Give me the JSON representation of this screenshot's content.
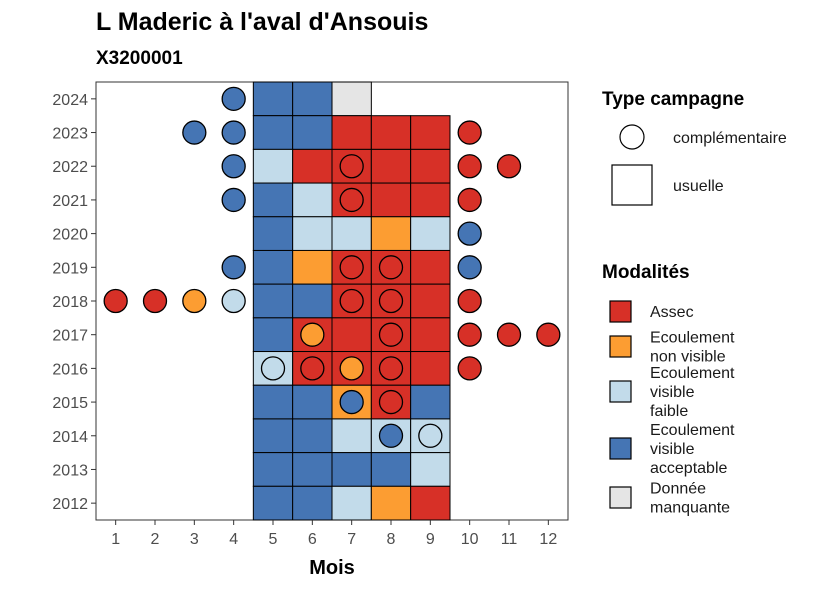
{
  "chart_data": {
    "type": "heatmap",
    "title": "L Maderic à l'aval d'Ansouis",
    "subtitle": "X3200001",
    "xlabel": "Mois",
    "ylabel": "",
    "x_ticks": [
      "1",
      "2",
      "3",
      "4",
      "5",
      "6",
      "7",
      "8",
      "9",
      "10",
      "11",
      "12"
    ],
    "y_ticks": [
      "2012",
      "2013",
      "2014",
      "2015",
      "2016",
      "2017",
      "2018",
      "2019",
      "2020",
      "2021",
      "2022",
      "2023",
      "2024"
    ],
    "xlim": [
      0.5,
      12.5
    ],
    "ylim": [
      2011.5,
      2024.5
    ],
    "legend_shape": {
      "title": "Type campagne",
      "items": [
        {
          "label": "complémentaire",
          "shape": "circle"
        },
        {
          "label": "usuelle",
          "shape": "square"
        }
      ]
    },
    "legend_modalites": {
      "title": "Modalités",
      "items": [
        {
          "key": "assec",
          "lines": [
            "Assec"
          ],
          "color": "#d73027"
        },
        {
          "key": "nonvisible",
          "lines": [
            "Ecoulement",
            "non visible"
          ],
          "color": "#fc9d32"
        },
        {
          "key": "faible",
          "lines": [
            "Ecoulement",
            "visible",
            "faible"
          ],
          "color": "#c2dbea"
        },
        {
          "key": "acceptable",
          "lines": [
            "Ecoulement",
            "visible",
            "acceptable"
          ],
          "color": "#4575b4"
        },
        {
          "key": "manquante",
          "lines": [
            "Donnée",
            "manquante"
          ],
          "color": "#e5e5e5"
        }
      ]
    },
    "usuelle": [
      {
        "year": 2024,
        "month": 5,
        "value": "acceptable"
      },
      {
        "year": 2024,
        "month": 6,
        "value": "acceptable"
      },
      {
        "year": 2024,
        "month": 7,
        "value": "manquante"
      },
      {
        "year": 2023,
        "month": 5,
        "value": "acceptable"
      },
      {
        "year": 2023,
        "month": 6,
        "value": "acceptable"
      },
      {
        "year": 2023,
        "month": 7,
        "value": "assec"
      },
      {
        "year": 2023,
        "month": 8,
        "value": "assec"
      },
      {
        "year": 2023,
        "month": 9,
        "value": "assec"
      },
      {
        "year": 2022,
        "month": 5,
        "value": "faible"
      },
      {
        "year": 2022,
        "month": 6,
        "value": "assec"
      },
      {
        "year": 2022,
        "month": 7,
        "value": "assec"
      },
      {
        "year": 2022,
        "month": 8,
        "value": "assec"
      },
      {
        "year": 2022,
        "month": 9,
        "value": "assec"
      },
      {
        "year": 2021,
        "month": 5,
        "value": "acceptable"
      },
      {
        "year": 2021,
        "month": 6,
        "value": "faible"
      },
      {
        "year": 2021,
        "month": 7,
        "value": "assec"
      },
      {
        "year": 2021,
        "month": 8,
        "value": "assec"
      },
      {
        "year": 2021,
        "month": 9,
        "value": "assec"
      },
      {
        "year": 2020,
        "month": 5,
        "value": "acceptable"
      },
      {
        "year": 2020,
        "month": 6,
        "value": "faible"
      },
      {
        "year": 2020,
        "month": 7,
        "value": "faible"
      },
      {
        "year": 2020,
        "month": 8,
        "value": "nonvisible"
      },
      {
        "year": 2020,
        "month": 9,
        "value": "faible"
      },
      {
        "year": 2019,
        "month": 5,
        "value": "acceptable"
      },
      {
        "year": 2019,
        "month": 6,
        "value": "nonvisible"
      },
      {
        "year": 2019,
        "month": 7,
        "value": "assec"
      },
      {
        "year": 2019,
        "month": 8,
        "value": "assec"
      },
      {
        "year": 2019,
        "month": 9,
        "value": "assec"
      },
      {
        "year": 2018,
        "month": 5,
        "value": "acceptable"
      },
      {
        "year": 2018,
        "month": 6,
        "value": "acceptable"
      },
      {
        "year": 2018,
        "month": 7,
        "value": "assec"
      },
      {
        "year": 2018,
        "month": 8,
        "value": "assec"
      },
      {
        "year": 2018,
        "month": 9,
        "value": "assec"
      },
      {
        "year": 2017,
        "month": 5,
        "value": "acceptable"
      },
      {
        "year": 2017,
        "month": 6,
        "value": "assec"
      },
      {
        "year": 2017,
        "month": 7,
        "value": "assec"
      },
      {
        "year": 2017,
        "month": 8,
        "value": "assec"
      },
      {
        "year": 2017,
        "month": 9,
        "value": "assec"
      },
      {
        "year": 2016,
        "month": 5,
        "value": "faible"
      },
      {
        "year": 2016,
        "month": 6,
        "value": "assec"
      },
      {
        "year": 2016,
        "month": 7,
        "value": "assec"
      },
      {
        "year": 2016,
        "month": 8,
        "value": "assec"
      },
      {
        "year": 2016,
        "month": 9,
        "value": "assec"
      },
      {
        "year": 2015,
        "month": 5,
        "value": "acceptable"
      },
      {
        "year": 2015,
        "month": 6,
        "value": "acceptable"
      },
      {
        "year": 2015,
        "month": 7,
        "value": "nonvisible"
      },
      {
        "year": 2015,
        "month": 8,
        "value": "assec"
      },
      {
        "year": 2015,
        "month": 9,
        "value": "acceptable"
      },
      {
        "year": 2014,
        "month": 5,
        "value": "acceptable"
      },
      {
        "year": 2014,
        "month": 6,
        "value": "acceptable"
      },
      {
        "year": 2014,
        "month": 7,
        "value": "faible"
      },
      {
        "year": 2014,
        "month": 8,
        "value": "faible"
      },
      {
        "year": 2014,
        "month": 9,
        "value": "faible"
      },
      {
        "year": 2013,
        "month": 5,
        "value": "acceptable"
      },
      {
        "year": 2013,
        "month": 6,
        "value": "acceptable"
      },
      {
        "year": 2013,
        "month": 7,
        "value": "acceptable"
      },
      {
        "year": 2013,
        "month": 8,
        "value": "acceptable"
      },
      {
        "year": 2013,
        "month": 9,
        "value": "faible"
      },
      {
        "year": 2012,
        "month": 5,
        "value": "acceptable"
      },
      {
        "year": 2012,
        "month": 6,
        "value": "acceptable"
      },
      {
        "year": 2012,
        "month": 7,
        "value": "faible"
      },
      {
        "year": 2012,
        "month": 8,
        "value": "nonvisible"
      },
      {
        "year": 2012,
        "month": 9,
        "value": "assec"
      }
    ],
    "complementaire": [
      {
        "year": 2024,
        "month": 4,
        "value": "acceptable"
      },
      {
        "year": 2023,
        "month": 3,
        "value": "acceptable"
      },
      {
        "year": 2023,
        "month": 4,
        "value": "acceptable"
      },
      {
        "year": 2023,
        "month": 10,
        "value": "assec"
      },
      {
        "year": 2022,
        "month": 4,
        "value": "acceptable"
      },
      {
        "year": 2022,
        "month": 7,
        "value": "assec"
      },
      {
        "year": 2022,
        "month": 10,
        "value": "assec"
      },
      {
        "year": 2022,
        "month": 11,
        "value": "assec"
      },
      {
        "year": 2021,
        "month": 4,
        "value": "acceptable"
      },
      {
        "year": 2021,
        "month": 7,
        "value": "assec"
      },
      {
        "year": 2021,
        "month": 10,
        "value": "assec"
      },
      {
        "year": 2020,
        "month": 10,
        "value": "acceptable"
      },
      {
        "year": 2019,
        "month": 4,
        "value": "acceptable"
      },
      {
        "year": 2019,
        "month": 7,
        "value": "assec"
      },
      {
        "year": 2019,
        "month": 8,
        "value": "assec"
      },
      {
        "year": 2019,
        "month": 10,
        "value": "acceptable"
      },
      {
        "year": 2018,
        "month": 1,
        "value": "assec"
      },
      {
        "year": 2018,
        "month": 2,
        "value": "assec"
      },
      {
        "year": 2018,
        "month": 3,
        "value": "nonvisible"
      },
      {
        "year": 2018,
        "month": 4,
        "value": "faible"
      },
      {
        "year": 2018,
        "month": 7,
        "value": "assec"
      },
      {
        "year": 2018,
        "month": 8,
        "value": "assec"
      },
      {
        "year": 2018,
        "month": 10,
        "value": "assec"
      },
      {
        "year": 2017,
        "month": 6,
        "value": "nonvisible"
      },
      {
        "year": 2017,
        "month": 8,
        "value": "assec"
      },
      {
        "year": 2017,
        "month": 10,
        "value": "assec"
      },
      {
        "year": 2017,
        "month": 11,
        "value": "assec"
      },
      {
        "year": 2017,
        "month": 12,
        "value": "assec"
      },
      {
        "year": 2016,
        "month": 5,
        "value": "faible"
      },
      {
        "year": 2016,
        "month": 6,
        "value": "assec"
      },
      {
        "year": 2016,
        "month": 7,
        "value": "nonvisible"
      },
      {
        "year": 2016,
        "month": 8,
        "value": "assec"
      },
      {
        "year": 2016,
        "month": 10,
        "value": "assec"
      },
      {
        "year": 2015,
        "month": 7,
        "value": "acceptable"
      },
      {
        "year": 2015,
        "month": 8,
        "value": "assec"
      },
      {
        "year": 2014,
        "month": 8,
        "value": "acceptable"
      },
      {
        "year": 2014,
        "month": 9,
        "value": "faible"
      }
    ]
  }
}
